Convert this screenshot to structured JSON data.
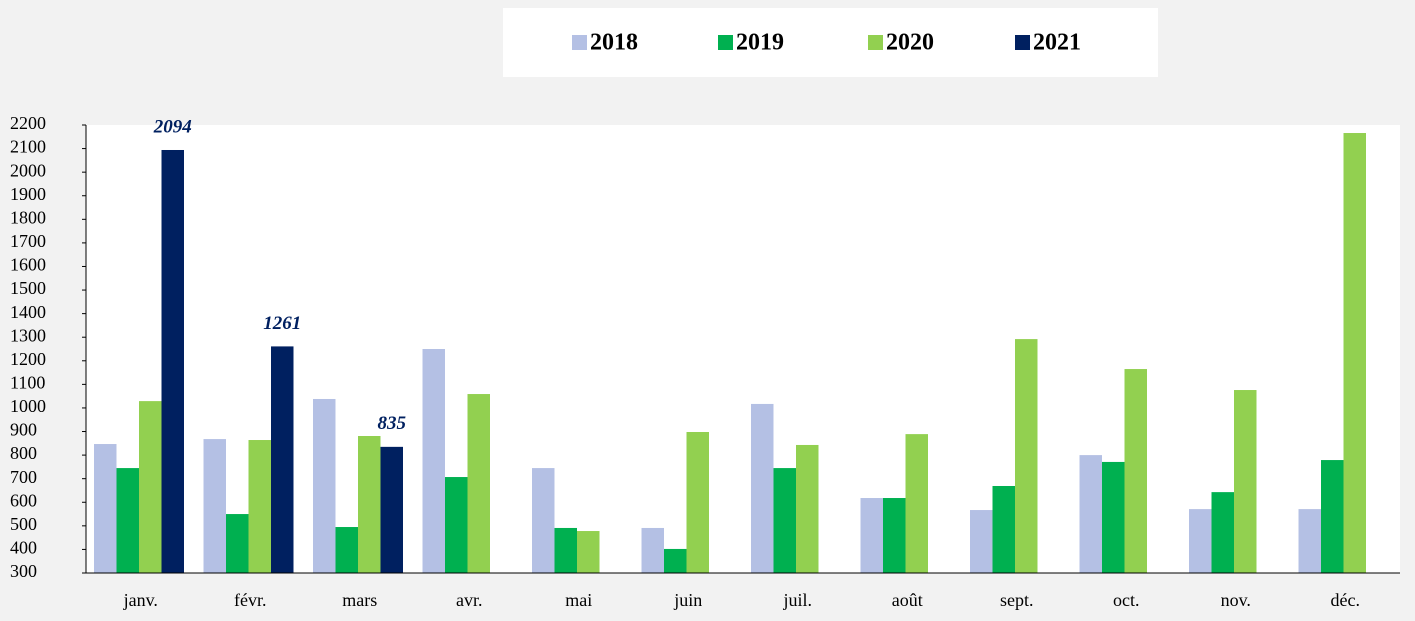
{
  "chart_data": {
    "type": "bar",
    "categories": [
      "janv.",
      "févr.",
      "mars",
      "avr.",
      "mai",
      "juin",
      "juil.",
      "août",
      "sept.",
      "oct.",
      "nov.",
      "déc."
    ],
    "series": [
      {
        "name": "2018",
        "color": "#b4c0e4",
        "values": [
          847,
          868,
          1038,
          1250,
          745,
          491,
          1017,
          618,
          567,
          800,
          571,
          571
        ]
      },
      {
        "name": "2019",
        "color": "#00b050",
        "values": [
          745,
          550,
          495,
          707,
          491,
          402,
          745,
          618,
          669,
          771,
          643,
          779
        ]
      },
      {
        "name": "2020",
        "color": "#92d050",
        "values": [
          1029,
          864,
          881,
          1059,
          478,
          898,
          843,
          889,
          1292,
          1165,
          1076,
          2166
        ]
      },
      {
        "name": "2021",
        "color": "#002060",
        "values": [
          2094,
          1261,
          835,
          null,
          null,
          null,
          null,
          null,
          null,
          null,
          null,
          null
        ],
        "data_labels": true
      }
    ],
    "ylim": [
      300,
      2200
    ],
    "yticks": [
      300,
      400,
      500,
      600,
      700,
      800,
      900,
      1000,
      1100,
      1200,
      1300,
      1400,
      1500,
      1600,
      1700,
      1800,
      1900,
      2000,
      2100,
      2200
    ],
    "grid": false,
    "legend": "top"
  }
}
